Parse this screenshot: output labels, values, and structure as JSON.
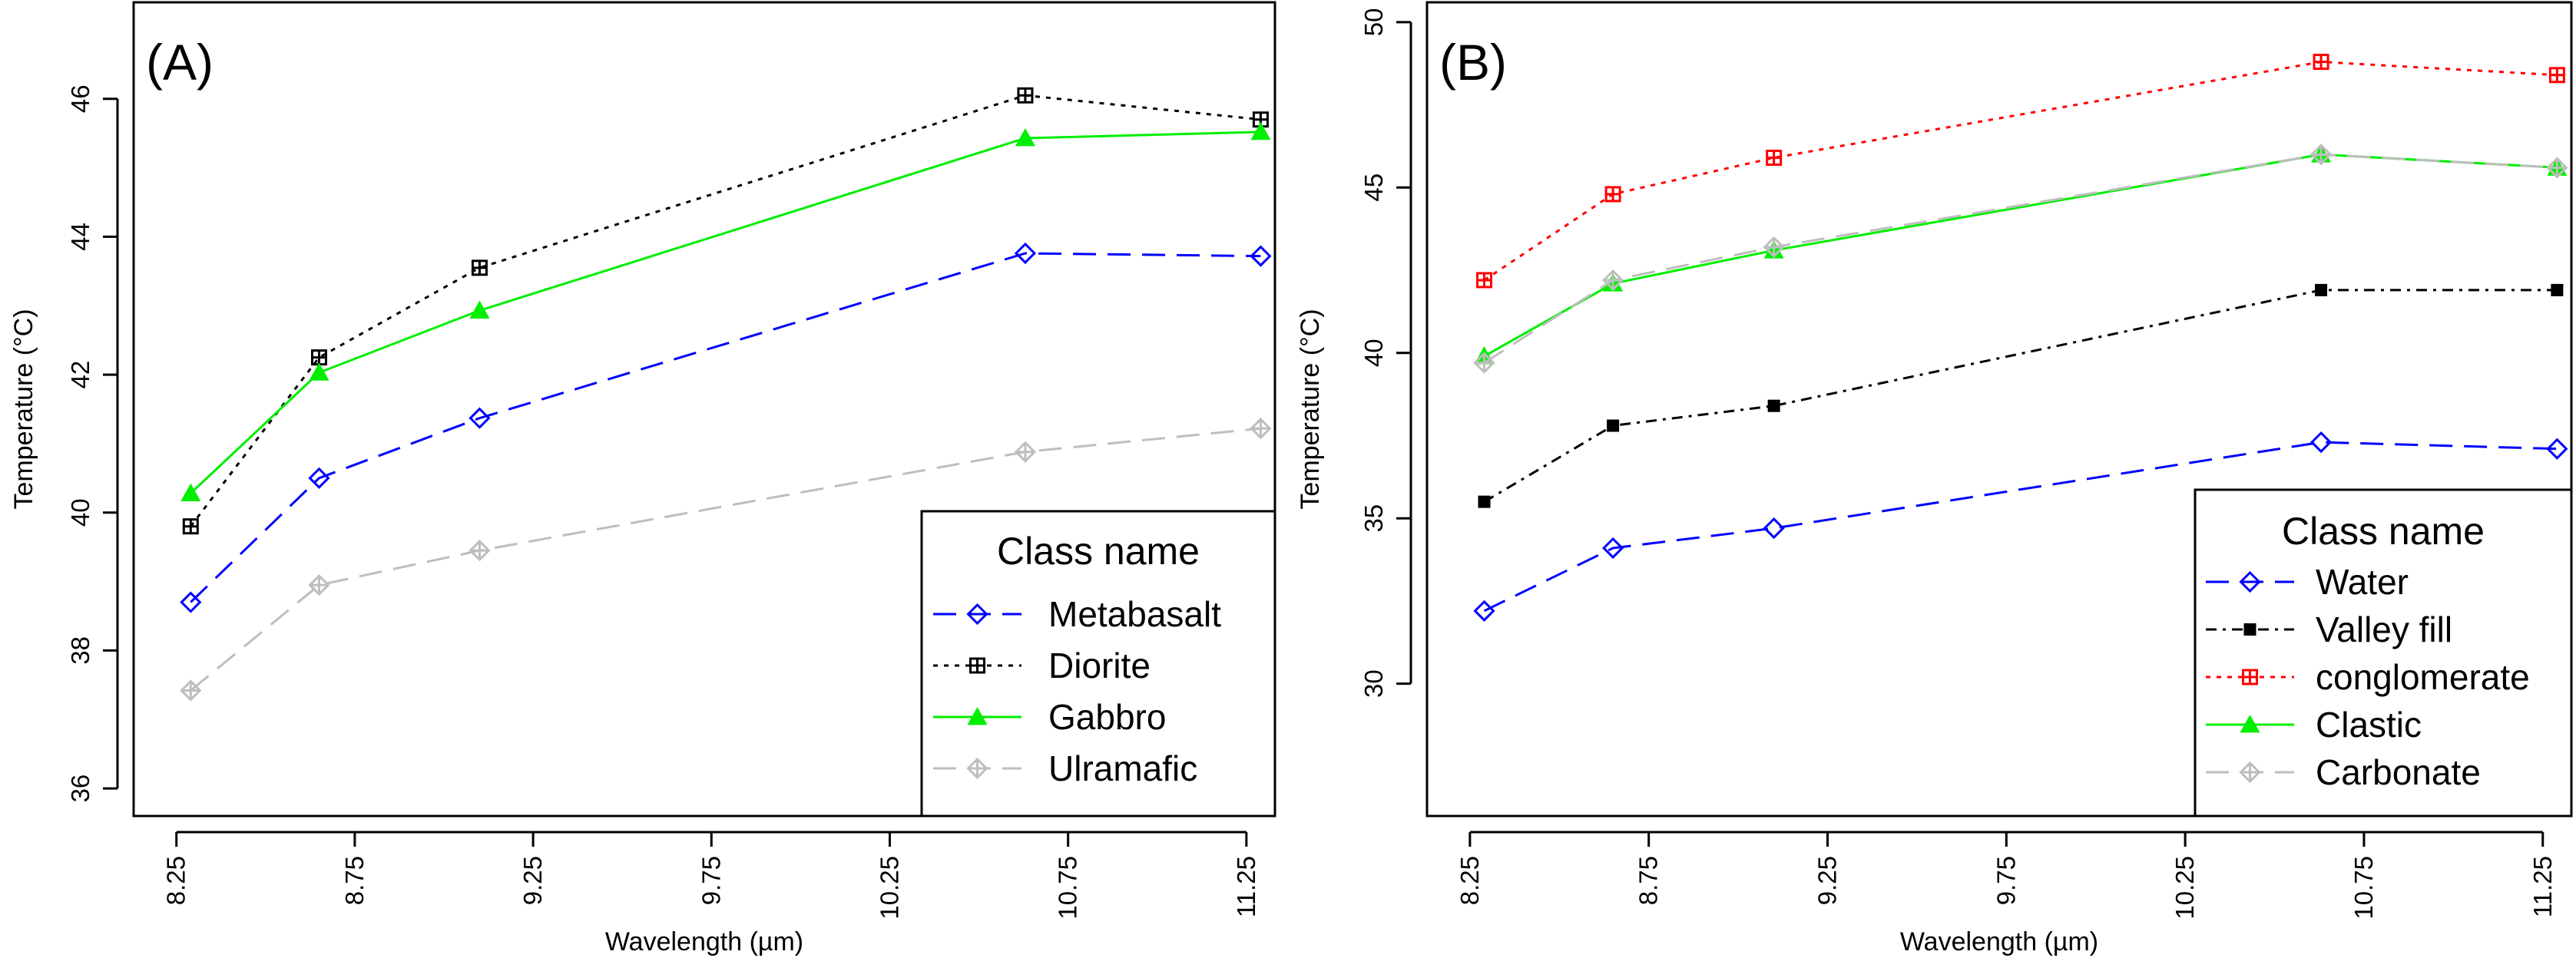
{
  "chart_data": [
    {
      "type": "line",
      "panel_label": "(A)",
      "xlabel": "Wavelength (µm)",
      "ylabel": "Temperature (°C)",
      "xlim": [
        8.13,
        11.33
      ],
      "ylim": [
        35.6,
        47.4
      ],
      "x_ticks": [
        8.25,
        8.75,
        9.25,
        9.75,
        10.25,
        10.75,
        11.25
      ],
      "x_tick_labels": [
        "8.25",
        "8.75",
        "9.25",
        "9.75",
        "10.25",
        "10.75",
        "11.25"
      ],
      "y_ticks": [
        36,
        38,
        40,
        42,
        44,
        46
      ],
      "y_tick_labels": [
        "36",
        "38",
        "40",
        "42",
        "44",
        "46"
      ],
      "x": [
        8.29,
        8.65,
        9.1,
        10.63,
        11.29
      ],
      "legend": {
        "title": "Class name",
        "position": "bottom-right"
      },
      "series": [
        {
          "name": "Metabasalt",
          "values": [
            38.7,
            40.5,
            41.37,
            43.76,
            43.72
          ],
          "color": "#0000ff",
          "dash": "long-dash",
          "marker": "open-diamond"
        },
        {
          "name": "Diorite",
          "values": [
            39.8,
            42.25,
            43.55,
            46.05,
            45.7
          ],
          "color": "#000000",
          "dash": "dotted",
          "marker": "square-plus"
        },
        {
          "name": "Gabbro",
          "values": [
            40.28,
            42.03,
            42.93,
            45.43,
            45.52
          ],
          "color": "#00ee00",
          "dash": "solid",
          "marker": "filled-triangle"
        },
        {
          "name": "Ulramafic",
          "values": [
            37.42,
            38.95,
            39.45,
            40.88,
            41.22
          ],
          "color": "#bebebe",
          "dash": "long-dash",
          "marker": "diamond-plus"
        }
      ]
    },
    {
      "type": "line",
      "panel_label": "(B)",
      "xlabel": "Wavelength (µm)",
      "ylabel": "Temperature (°C)",
      "xlim": [
        8.13,
        11.33
      ],
      "ylim": [
        26.0,
        50.6
      ],
      "x_ticks": [
        8.25,
        8.75,
        9.25,
        9.75,
        10.25,
        10.75,
        11.25
      ],
      "x_tick_labels": [
        "8.25",
        "8.75",
        "9.25",
        "9.75",
        "10.25",
        "10.75",
        "11.25"
      ],
      "y_ticks": [
        30,
        35,
        40,
        45,
        50
      ],
      "y_tick_labels": [
        "30",
        "35",
        "40",
        "45",
        "50"
      ],
      "x": [
        8.29,
        8.65,
        9.1,
        10.63,
        11.29
      ],
      "legend": {
        "title": "Class name",
        "position": "bottom-right"
      },
      "series": [
        {
          "name": "Water",
          "values": [
            32.2,
            34.1,
            34.7,
            37.3,
            37.1
          ],
          "color": "#0000ff",
          "dash": "long-dash",
          "marker": "open-diamond"
        },
        {
          "name": "Valley fill",
          "values": [
            35.5,
            37.8,
            38.4,
            41.9,
            41.9
          ],
          "color": "#000000",
          "dash": "dash-dot",
          "marker": "filled-square"
        },
        {
          "name": "conglomerate",
          "values": [
            42.2,
            44.8,
            45.9,
            48.8,
            48.4
          ],
          "color": "#ff0000",
          "dash": "dotted",
          "marker": "square-plus"
        },
        {
          "name": "Clastic",
          "values": [
            39.9,
            42.1,
            43.1,
            46.0,
            45.6
          ],
          "color": "#00ee00",
          "dash": "solid",
          "marker": "filled-triangle"
        },
        {
          "name": "Carbonate",
          "values": [
            39.7,
            42.2,
            43.2,
            46.0,
            45.6
          ],
          "color": "#bebebe",
          "dash": "long-dash",
          "marker": "diamond-plus"
        }
      ]
    }
  ]
}
